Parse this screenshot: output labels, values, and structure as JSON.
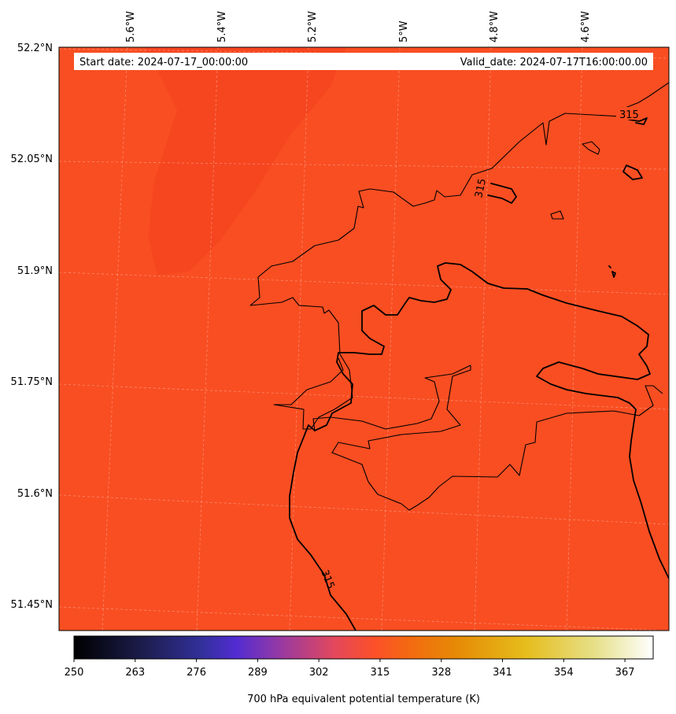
{
  "header": {
    "start_date": "Start date: 2024-07-17_00:00:00",
    "valid_date": "Valid_date: 2024-07-17T16:00:00.00"
  },
  "map": {
    "longitude_labels": [
      "5.6°W",
      "5.4°W",
      "5.2°W",
      "5°W",
      "4.8°W",
      "4.6°W"
    ],
    "latitude_labels": [
      "52.2°N",
      "52.05°N",
      "51.9°N",
      "51.75°N",
      "51.6°N",
      "51.45°N"
    ],
    "field_color": "#f94e22",
    "field_dark_color": "#f6461f",
    "contour_label": "315",
    "contour_level": 315,
    "gridlines": true
  },
  "colorbar": {
    "ticks": [
      "250",
      "263",
      "276",
      "289",
      "302",
      "315",
      "328",
      "341",
      "354",
      "367"
    ],
    "min": 250,
    "max": 373,
    "label": "700 hPa equivalent potential temperature (K)",
    "colormap": "CMRmap"
  }
}
